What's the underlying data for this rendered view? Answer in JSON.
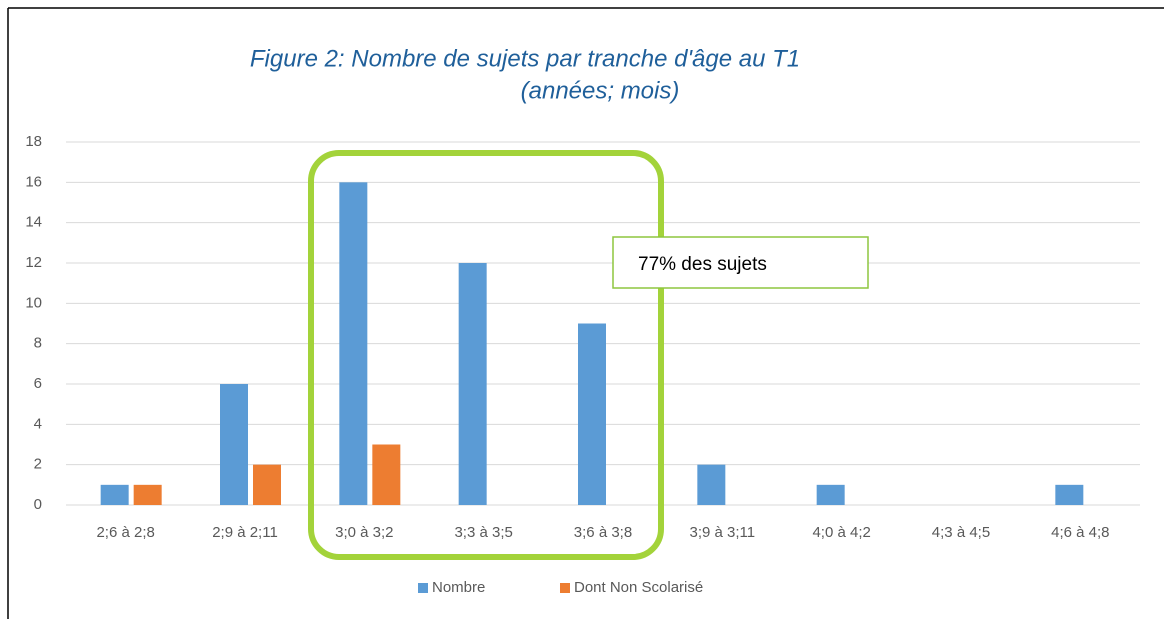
{
  "chart_data": {
    "type": "bar",
    "title": "Figure 2: Nombre de sujets par tranche d'âge au T1",
    "subtitle": "(années; mois)",
    "annotation": "77% des sujets",
    "categories": [
      "2;6 à 2;8",
      "2;9 à 2;11",
      "3;0 à 3;2",
      "3;3 à 3;5",
      "3;6 à 3;8",
      "3;9 à 3;11",
      "4;0 à 4;2",
      "4;3 à 4;5",
      "4;6 à 4;8"
    ],
    "series": [
      {
        "name": "Nombre",
        "color": "#5b9bd5",
        "values": [
          1,
          6,
          16,
          12,
          9,
          2,
          1,
          0,
          1
        ]
      },
      {
        "name": "Dont Non Scolarisé",
        "color": "#ed7d31",
        "values": [
          1,
          2,
          3,
          0,
          0,
          0,
          0,
          0,
          0
        ]
      }
    ],
    "ylim": [
      0,
      18
    ],
    "yticks": [
      0,
      2,
      4,
      6,
      8,
      10,
      12,
      14,
      16,
      18
    ],
    "grid": true,
    "legend": "bottom"
  }
}
